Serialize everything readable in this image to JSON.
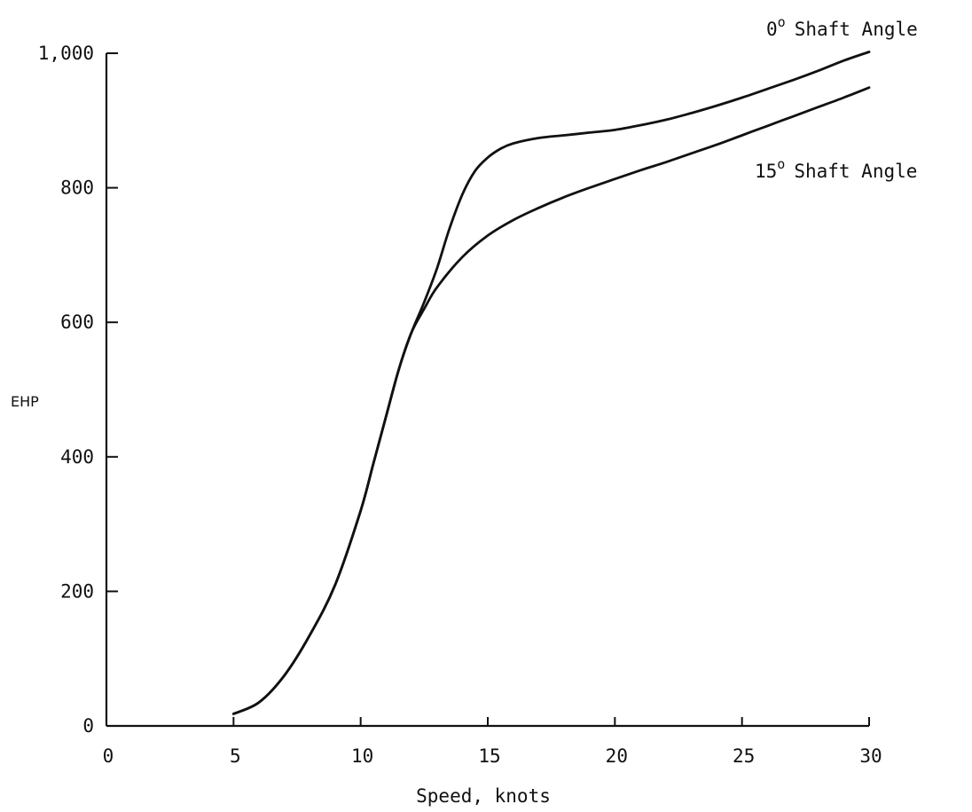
{
  "chart_data": {
    "type": "line",
    "title": "",
    "xlabel": "Speed, knots",
    "ylabel": "EHP",
    "xlim": [
      0,
      30
    ],
    "ylim": [
      0,
      1000
    ],
    "x_ticks": [
      "0",
      "5",
      "10",
      "15",
      "20",
      "25",
      "30"
    ],
    "y_ticks": [
      "0",
      "200",
      "400",
      "600",
      "800",
      "1,000"
    ],
    "grid": false,
    "series": [
      {
        "name": "0° Shaft Angle",
        "label_prefix": "0",
        "label_suffix": "Shaft Angle",
        "x": [
          5,
          6,
          7,
          8,
          9,
          10,
          10.5,
          11,
          11.5,
          12,
          12.5,
          13,
          13.5,
          14,
          14.5,
          15,
          15.5,
          16,
          17,
          18,
          19,
          20,
          21,
          22,
          23,
          24,
          25,
          26,
          27,
          28,
          29,
          30
        ],
        "y": [
          18,
          35,
          75,
          135,
          210,
          320,
          390,
          460,
          530,
          585,
          630,
          680,
          740,
          790,
          825,
          845,
          858,
          866,
          874,
          878,
          882,
          886,
          893,
          901,
          911,
          922,
          934,
          947,
          960,
          974,
          989,
          1002
        ]
      },
      {
        "name": "15° Shaft Angle",
        "label_prefix": "15",
        "label_suffix": "Shaft Angle",
        "x": [
          5,
          6,
          7,
          8,
          9,
          10,
          10.5,
          11,
          11.5,
          12,
          12.5,
          13,
          14,
          15,
          16,
          17,
          18,
          19,
          20,
          21,
          22,
          23,
          24,
          25,
          26,
          27,
          28,
          29,
          30
        ],
        "y": [
          18,
          35,
          75,
          135,
          210,
          320,
          390,
          460,
          530,
          585,
          620,
          652,
          697,
          729,
          752,
          770,
          786,
          800,
          813,
          826,
          838,
          851,
          864,
          878,
          892,
          906,
          920,
          934,
          949
        ]
      }
    ]
  }
}
